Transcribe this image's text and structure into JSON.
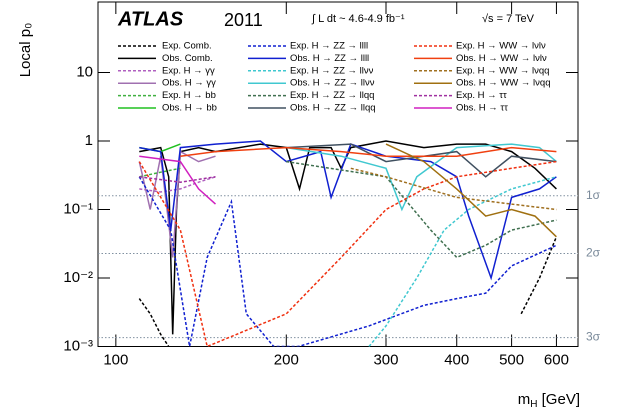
{
  "chart_data": {
    "type": "line",
    "title": "ATLAS",
    "subtitle": "2011",
    "annotations": [
      "∫ L dt ~ 4.6-4.9 fb⁻¹",
      "√s = 7 TeV"
    ],
    "y_label": "Local p₀",
    "x_label": {
      "main": "m",
      "sub": "H",
      "rest": " [GeV]"
    },
    "x_log": true,
    "y_log": true,
    "xlim": [
      93,
      655
    ],
    "ylim": [
      0.001,
      107
    ],
    "xticks": [
      100,
      200,
      300,
      400,
      500,
      600
    ],
    "yticks": [
      {
        "value": 0.001,
        "label": "10⁻³"
      },
      {
        "value": 0.01,
        "label": "10⁻²"
      },
      {
        "value": 0.1,
        "label": "10⁻¹"
      },
      1,
      10
    ],
    "sigma_lines": [
      {
        "value": 0.159,
        "label": "1σ"
      },
      {
        "value": 0.0228,
        "label": "2σ"
      },
      {
        "value": 0.00135,
        "label": "3σ"
      }
    ],
    "series": [
      {
        "name": "Exp. Comb.",
        "color": "#000000",
        "style": "dashed",
        "x": [
          110,
          115,
          120,
          124,
          480,
          520,
          560,
          600
        ],
        "values": [
          0.005,
          0.003,
          0.0015,
          0.001,
          null,
          0.003,
          0.01,
          0.04
        ]
      },
      {
        "name": "Obs. Comb.",
        "color": "#000000",
        "style": "solid",
        "x": [
          110,
          120,
          124,
          126,
          128,
          130,
          140,
          150,
          180,
          200,
          211,
          220,
          240,
          250,
          260,
          300,
          350,
          400,
          450,
          500,
          550,
          600
        ],
        "values": [
          0.7,
          0.8,
          0.3,
          0.0015,
          0.1,
          0.7,
          0.8,
          0.7,
          0.9,
          0.8,
          0.2,
          0.8,
          0.8,
          0.4,
          0.8,
          1.0,
          0.8,
          0.9,
          0.9,
          0.7,
          0.4,
          0.2
        ]
      },
      {
        "name": "Exp. H → γγ",
        "color": "#b060c0",
        "style": "dashed",
        "x": [
          110,
          120,
          130,
          140,
          150
        ],
        "values": [
          0.2,
          0.18,
          0.2,
          0.25,
          0.3
        ]
      },
      {
        "name": "Obs. H → γγ",
        "color": "#a070b0",
        "style": "solid",
        "x": [
          110,
          115,
          120,
          126,
          130,
          140,
          150
        ],
        "values": [
          0.5,
          0.1,
          0.6,
          0.02,
          0.7,
          0.5,
          0.6
        ]
      },
      {
        "name": "Exp. H → bb",
        "color": "#40b040",
        "style": "dashed",
        "x": [
          110,
          120,
          130
        ],
        "values": [
          0.3,
          0.35,
          0.4
        ]
      },
      {
        "name": "Obs. H → bb",
        "color": "#20c020",
        "style": "solid",
        "x": [
          110,
          120,
          130
        ],
        "values": [
          0.8,
          0.7,
          0.9
        ]
      },
      {
        "name": "Exp. H → ZZ → llll",
        "color": "#1020d0",
        "style": "dashed",
        "x": [
          110,
          125,
          135,
          145,
          160,
          170,
          190,
          210,
          280,
          350,
          400,
          450,
          500,
          600
        ],
        "values": [
          0.3,
          0.05,
          0.001,
          0.02,
          0.13,
          0.003,
          0.001,
          0.001,
          0.002,
          0.004,
          0.005,
          0.006,
          0.015,
          0.03
        ]
      },
      {
        "name": "Obs. H → ZZ → llll",
        "color": "#1020d0",
        "style": "solid",
        "x": [
          110,
          120,
          125,
          130,
          150,
          180,
          200,
          230,
          240,
          260,
          300,
          360,
          400,
          420,
          460,
          500,
          560,
          600
        ],
        "values": [
          0.8,
          0.7,
          0.05,
          0.8,
          0.9,
          1.0,
          0.5,
          0.7,
          0.15,
          0.9,
          0.6,
          0.5,
          0.3,
          0.08,
          0.01,
          0.15,
          0.2,
          0.3
        ]
      },
      {
        "name": "Exp. H → ZZ → llνν",
        "color": "#40c8d0",
        "style": "dashed",
        "x": [
          280,
          300,
          340,
          380,
          420,
          500,
          600
        ],
        "values": [
          0.001,
          0.002,
          0.01,
          0.05,
          0.1,
          0.2,
          0.3
        ]
      },
      {
        "name": "Obs. H → ZZ → llνν",
        "color": "#40c8d0",
        "style": "solid",
        "x": [
          200,
          250,
          300,
          320,
          340,
          400,
          500,
          560,
          600
        ],
        "values": [
          0.8,
          0.6,
          0.4,
          0.1,
          0.3,
          0.8,
          0.9,
          0.8,
          0.5
        ]
      },
      {
        "name": "Exp. H → ZZ → llqq",
        "color": "#407050",
        "style": "dashed",
        "x": [
          200,
          300,
          360,
          400,
          450,
          500,
          600
        ],
        "values": [
          0.5,
          0.3,
          0.05,
          0.02,
          0.03,
          0.05,
          0.07
        ]
      },
      {
        "name": "Obs. H → ZZ → llqq",
        "color": "#405060",
        "style": "solid",
        "x": [
          200,
          260,
          300,
          350,
          400,
          450,
          500,
          600
        ],
        "values": [
          0.8,
          0.9,
          0.5,
          0.6,
          0.7,
          0.3,
          0.6,
          0.5
        ]
      },
      {
        "name": "Exp. H → WW → lνlν",
        "color": "#f03010",
        "style": "dashed",
        "x": [
          110,
          130,
          145,
          200,
          250,
          300,
          350,
          400,
          500,
          600
        ],
        "values": [
          0.5,
          0.05,
          0.001,
          0.003,
          0.02,
          0.1,
          0.2,
          0.3,
          0.4,
          0.5
        ]
      },
      {
        "name": "Obs. H → WW → lνlν",
        "color": "#f04010",
        "style": "solid",
        "x": [
          130,
          150,
          200,
          250,
          300,
          400,
          500,
          600
        ],
        "values": [
          0.6,
          0.7,
          0.8,
          0.7,
          0.6,
          0.6,
          0.8,
          0.7
        ]
      },
      {
        "name": "Exp. H → WW → lνqq",
        "color": "#a07020",
        "style": "dashed",
        "x": [
          260,
          300,
          400,
          500,
          600
        ],
        "values": [
          0.4,
          0.3,
          0.15,
          0.12,
          0.1
        ]
      },
      {
        "name": "Obs. H → WW → lνqq",
        "color": "#a07010",
        "style": "solid",
        "x": [
          300,
          350,
          400,
          450,
          500,
          550,
          600
        ],
        "values": [
          0.9,
          0.5,
          0.2,
          0.08,
          0.1,
          0.08,
          0.04
        ]
      },
      {
        "name": "Exp. H → ττ",
        "color": "#a030a0",
        "style": "dashed",
        "x": [
          110,
          130,
          150
        ],
        "values": [
          0.3,
          0.25,
          0.3
        ]
      },
      {
        "name": "Obs. H → ττ",
        "color": "#d020c0",
        "style": "solid",
        "x": [
          110,
          130,
          140,
          150
        ],
        "values": [
          0.6,
          0.5,
          0.2,
          0.12
        ]
      }
    ]
  }
}
